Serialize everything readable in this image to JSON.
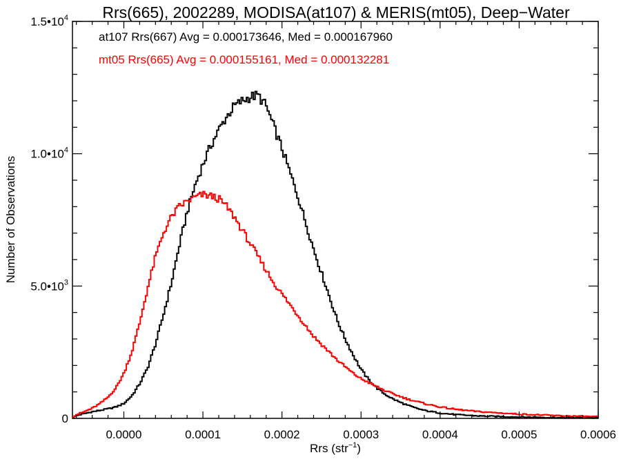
{
  "chart_data": {
    "type": "line",
    "title": "Rrs(665), 2002289, MODISA(at107) & MERIS(mt05), Deep−Water",
    "xlabel": "Rrs (str",
    "xlabel_sup": "−1",
    "xlabel_end": ")",
    "ylabel": "Number of Observations",
    "xlim": [
      -6.5e-05,
      0.0006
    ],
    "ylim": [
      0,
      15000
    ],
    "x_ticks": [
      {
        "value": 0.0,
        "label": "0.0000"
      },
      {
        "value": 0.0001,
        "label": "0.0001"
      },
      {
        "value": 0.0002,
        "label": "0.0002"
      },
      {
        "value": 0.0003,
        "label": "0.0003"
      },
      {
        "value": 0.0004,
        "label": "0.0004"
      },
      {
        "value": 0.0005,
        "label": "0.0005"
      },
      {
        "value": 0.0006,
        "label": "0.0006"
      }
    ],
    "y_ticks": [
      {
        "value": 0,
        "base": "0",
        "exp": ""
      },
      {
        "value": 5000,
        "base": "5.0•10",
        "exp": "3"
      },
      {
        "value": 10000,
        "base": "1.0•10",
        "exp": "4"
      },
      {
        "value": 15000,
        "base": "1.5•10",
        "exp": "4"
      }
    ],
    "annotations": [
      {
        "text": "at107 Rrs(667) Avg = 0.000173646, Med = 0.000167960",
        "color": "#000000"
      },
      {
        "text": "mt05 Rrs(665) Avg = 0.000155161, Med = 0.000132281",
        "color": "#ff0000"
      }
    ],
    "series": [
      {
        "color": "#000000",
        "points": [
          [
            -6.5e-05,
            0
          ],
          [
            -6e-05,
            100
          ],
          [
            -5e-05,
            180
          ],
          [
            -4e-05,
            250
          ],
          [
            -3e-05,
            300
          ],
          [
            -2e-05,
            360
          ],
          [
            -1e-05,
            430
          ],
          [
            0.0,
            560
          ],
          [
            1e-05,
            850
          ],
          [
            2e-05,
            1300
          ],
          [
            3e-05,
            1900
          ],
          [
            4e-05,
            2800
          ],
          [
            5e-05,
            3900
          ],
          [
            6e-05,
            5100
          ],
          [
            7e-05,
            6500
          ],
          [
            8e-05,
            7800
          ],
          [
            9e-05,
            8800
          ],
          [
            0.0001,
            9600
          ],
          [
            0.00011,
            10300
          ],
          [
            0.00012,
            10900
          ],
          [
            0.00013,
            11400
          ],
          [
            0.00014,
            11800
          ],
          [
            0.00015,
            12000
          ],
          [
            0.00016,
            12150
          ],
          [
            0.00017,
            12200
          ],
          [
            0.00018,
            11800
          ],
          [
            0.00019,
            11000
          ],
          [
            0.0002,
            10200
          ],
          [
            0.00021,
            9300
          ],
          [
            0.00022,
            8400
          ],
          [
            0.00023,
            7400
          ],
          [
            0.00024,
            6400
          ],
          [
            0.00025,
            5500
          ],
          [
            0.00026,
            4600
          ],
          [
            0.00027,
            3700
          ],
          [
            0.00028,
            3000
          ],
          [
            0.00029,
            2400
          ],
          [
            0.0003,
            1850
          ],
          [
            0.00031,
            1450
          ],
          [
            0.00032,
            1150
          ],
          [
            0.00033,
            920
          ],
          [
            0.00034,
            740
          ],
          [
            0.00035,
            600
          ],
          [
            0.00036,
            480
          ],
          [
            0.00037,
            380
          ],
          [
            0.00038,
            300
          ],
          [
            0.0004,
            200
          ],
          [
            0.00042,
            140
          ],
          [
            0.00045,
            90
          ],
          [
            0.0005,
            50
          ],
          [
            0.00055,
            30
          ],
          [
            0.0006,
            20
          ]
        ]
      },
      {
        "color": "#ff0000",
        "points": [
          [
            -6.5e-05,
            50
          ],
          [
            -6e-05,
            140
          ],
          [
            -5e-05,
            250
          ],
          [
            -4e-05,
            380
          ],
          [
            -3e-05,
            560
          ],
          [
            -2e-05,
            800
          ],
          [
            -1e-05,
            1150
          ],
          [
            0.0,
            1700
          ],
          [
            1e-05,
            2500
          ],
          [
            2e-05,
            3600
          ],
          [
            3e-05,
            4900
          ],
          [
            4e-05,
            6100
          ],
          [
            5e-05,
            7000
          ],
          [
            6e-05,
            7600
          ],
          [
            7e-05,
            8000
          ],
          [
            8e-05,
            8200
          ],
          [
            9e-05,
            8350
          ],
          [
            0.0001,
            8450
          ],
          [
            0.00011,
            8400
          ],
          [
            0.00012,
            8300
          ],
          [
            0.00013,
            8000
          ],
          [
            0.00014,
            7600
          ],
          [
            0.00015,
            7100
          ],
          [
            0.00016,
            6600
          ],
          [
            0.00017,
            6100
          ],
          [
            0.00018,
            5600
          ],
          [
            0.00019,
            5100
          ],
          [
            0.0002,
            4700
          ],
          [
            0.00021,
            4300
          ],
          [
            0.00022,
            3900
          ],
          [
            0.00023,
            3500
          ],
          [
            0.00024,
            3100
          ],
          [
            0.00025,
            2800
          ],
          [
            0.00026,
            2500
          ],
          [
            0.00027,
            2200
          ],
          [
            0.00028,
            1950
          ],
          [
            0.00029,
            1700
          ],
          [
            0.0003,
            1500
          ],
          [
            0.00031,
            1350
          ],
          [
            0.00032,
            1200
          ],
          [
            0.00033,
            1050
          ],
          [
            0.00034,
            930
          ],
          [
            0.00035,
            820
          ],
          [
            0.00036,
            720
          ],
          [
            0.00037,
            640
          ],
          [
            0.00038,
            560
          ],
          [
            0.0004,
            430
          ],
          [
            0.00042,
            340
          ],
          [
            0.00045,
            250
          ],
          [
            0.0005,
            160
          ],
          [
            0.00055,
            100
          ],
          [
            0.0006,
            60
          ]
        ]
      }
    ]
  }
}
